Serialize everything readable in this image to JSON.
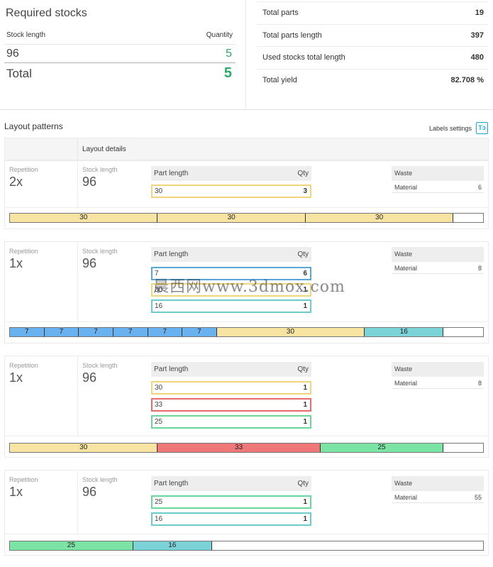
{
  "required_stocks": {
    "title": "Required stocks",
    "col_stock_length": "Stock length",
    "col_quantity": "Quantity",
    "rows": [
      {
        "length": "96",
        "qty": "5"
      }
    ],
    "total_label": "Total",
    "total_qty": "5"
  },
  "stats": [
    {
      "label": "Total parts",
      "value": "19"
    },
    {
      "label": "Total parts length",
      "value": "397"
    },
    {
      "label": "Used stocks total length",
      "value": "480"
    },
    {
      "label": "Total yield",
      "value": "82.708 %"
    }
  ],
  "layout": {
    "title": "Layout patterns",
    "labels_settings": "Labels settings",
    "labels_settings_icon": "Tↄ",
    "details_header": "Layout details",
    "repetition_label": "Repetition",
    "stock_length_label": "Stock length",
    "part_length_label": "Part length",
    "qty_label": "Qty",
    "waste_label": "Waste",
    "material_label": "Material"
  },
  "patterns": [
    {
      "repetition": "2x",
      "stock_length": "96",
      "waste_material": "6",
      "parts": [
        {
          "length": "30",
          "qty": "3",
          "color": "#f0d67a"
        }
      ],
      "bar": [
        {
          "label": "30",
          "value": 30,
          "color": "#f8e4a2"
        },
        {
          "label": "30",
          "value": 30,
          "color": "#f8e4a2"
        },
        {
          "label": "30",
          "value": 30,
          "color": "#f8e4a2"
        }
      ]
    },
    {
      "repetition": "1x",
      "stock_length": "96",
      "waste_material": "8",
      "parts": [
        {
          "length": "7",
          "qty": "6",
          "color": "#5aa6d8"
        },
        {
          "length": "30",
          "qty": "1",
          "color": "#f0d67a"
        },
        {
          "length": "16",
          "qty": "1",
          "color": "#6ccccc"
        }
      ],
      "bar": [
        {
          "label": "7",
          "value": 7,
          "color": "#6ab1f0"
        },
        {
          "label": "7",
          "value": 7,
          "color": "#6ab1f0"
        },
        {
          "label": "7",
          "value": 7,
          "color": "#6ab1f0"
        },
        {
          "label": "7",
          "value": 7,
          "color": "#6ab1f0"
        },
        {
          "label": "7",
          "value": 7,
          "color": "#6ab1f0"
        },
        {
          "label": "7",
          "value": 7,
          "color": "#6ab1f0"
        },
        {
          "label": "30",
          "value": 30,
          "color": "#f8e4a2"
        },
        {
          "label": "16",
          "value": 16,
          "color": "#7cd3d7"
        }
      ]
    },
    {
      "repetition": "1x",
      "stock_length": "96",
      "waste_material": "8",
      "parts": [
        {
          "length": "30",
          "qty": "1",
          "color": "#f0d67a"
        },
        {
          "length": "33",
          "qty": "1",
          "color": "#e86a6a"
        },
        {
          "length": "25",
          "qty": "1",
          "color": "#6bd69a"
        }
      ],
      "bar": [
        {
          "label": "30",
          "value": 30,
          "color": "#f8e4a2"
        },
        {
          "label": "33",
          "value": 33,
          "color": "#ef7777"
        },
        {
          "label": "25",
          "value": 25,
          "color": "#7be3a3"
        }
      ]
    },
    {
      "repetition": "1x",
      "stock_length": "96",
      "waste_material": "55",
      "parts": [
        {
          "length": "25",
          "qty": "1",
          "color": "#6bd69a"
        },
        {
          "length": "16",
          "qty": "1",
          "color": "#6ccccc"
        }
      ],
      "bar": [
        {
          "label": "25",
          "value": 25,
          "color": "#7be3a3"
        },
        {
          "label": "16",
          "value": 16,
          "color": "#7cd3d7"
        }
      ]
    }
  ],
  "watermark": "晨西网www.3dmox.com"
}
